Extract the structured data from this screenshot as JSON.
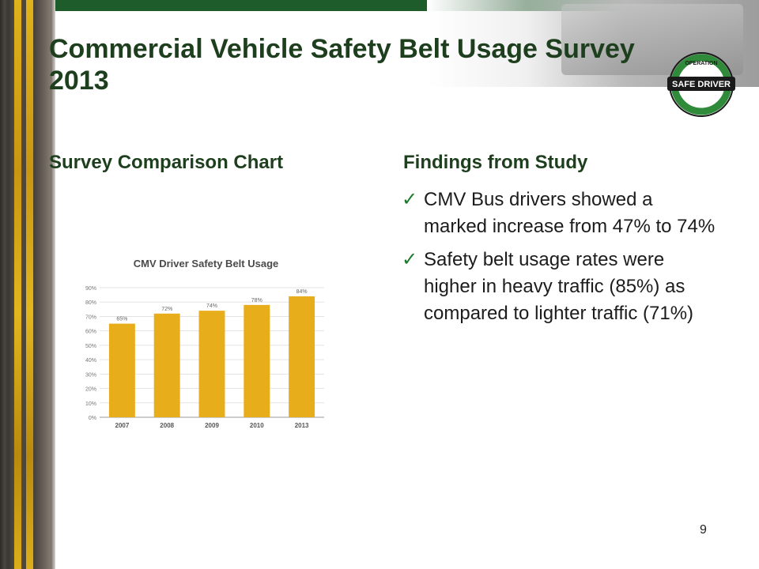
{
  "slide": {
    "title": "Commercial Vehicle Safety Belt Usage Survey 2013",
    "left_heading": "Survey Comparison Chart",
    "right_heading": "Findings from Study",
    "findings": [
      "CMV Bus drivers showed a marked increase from 47% to 74%",
      "Safety belt usage rates were higher in heavy traffic (85%) as compared to lighter traffic (71%)"
    ],
    "page_number": "9",
    "logo_text_top": "OPERATION",
    "logo_text_main": "SAFE DRIVER"
  },
  "colors": {
    "title": "#1e3f1e",
    "bar": "#e8ad1a",
    "check": "#1c7a2c",
    "logo_ring": "#2f8a3a"
  },
  "chart_data": {
    "type": "bar",
    "title": "CMV Driver Safety Belt Usage",
    "categories": [
      "2007",
      "2008",
      "2009",
      "2010",
      "2013"
    ],
    "values": [
      65,
      72,
      74,
      78,
      84
    ],
    "data_labels": [
      "65%",
      "72%",
      "74%",
      "78%",
      "84%"
    ],
    "y_ticks": [
      "0%",
      "10%",
      "20%",
      "30%",
      "40%",
      "50%",
      "60%",
      "70%",
      "80%",
      "90%"
    ],
    "ylim": [
      0,
      90
    ],
    "grid": true,
    "xlabel": "",
    "ylabel": ""
  }
}
